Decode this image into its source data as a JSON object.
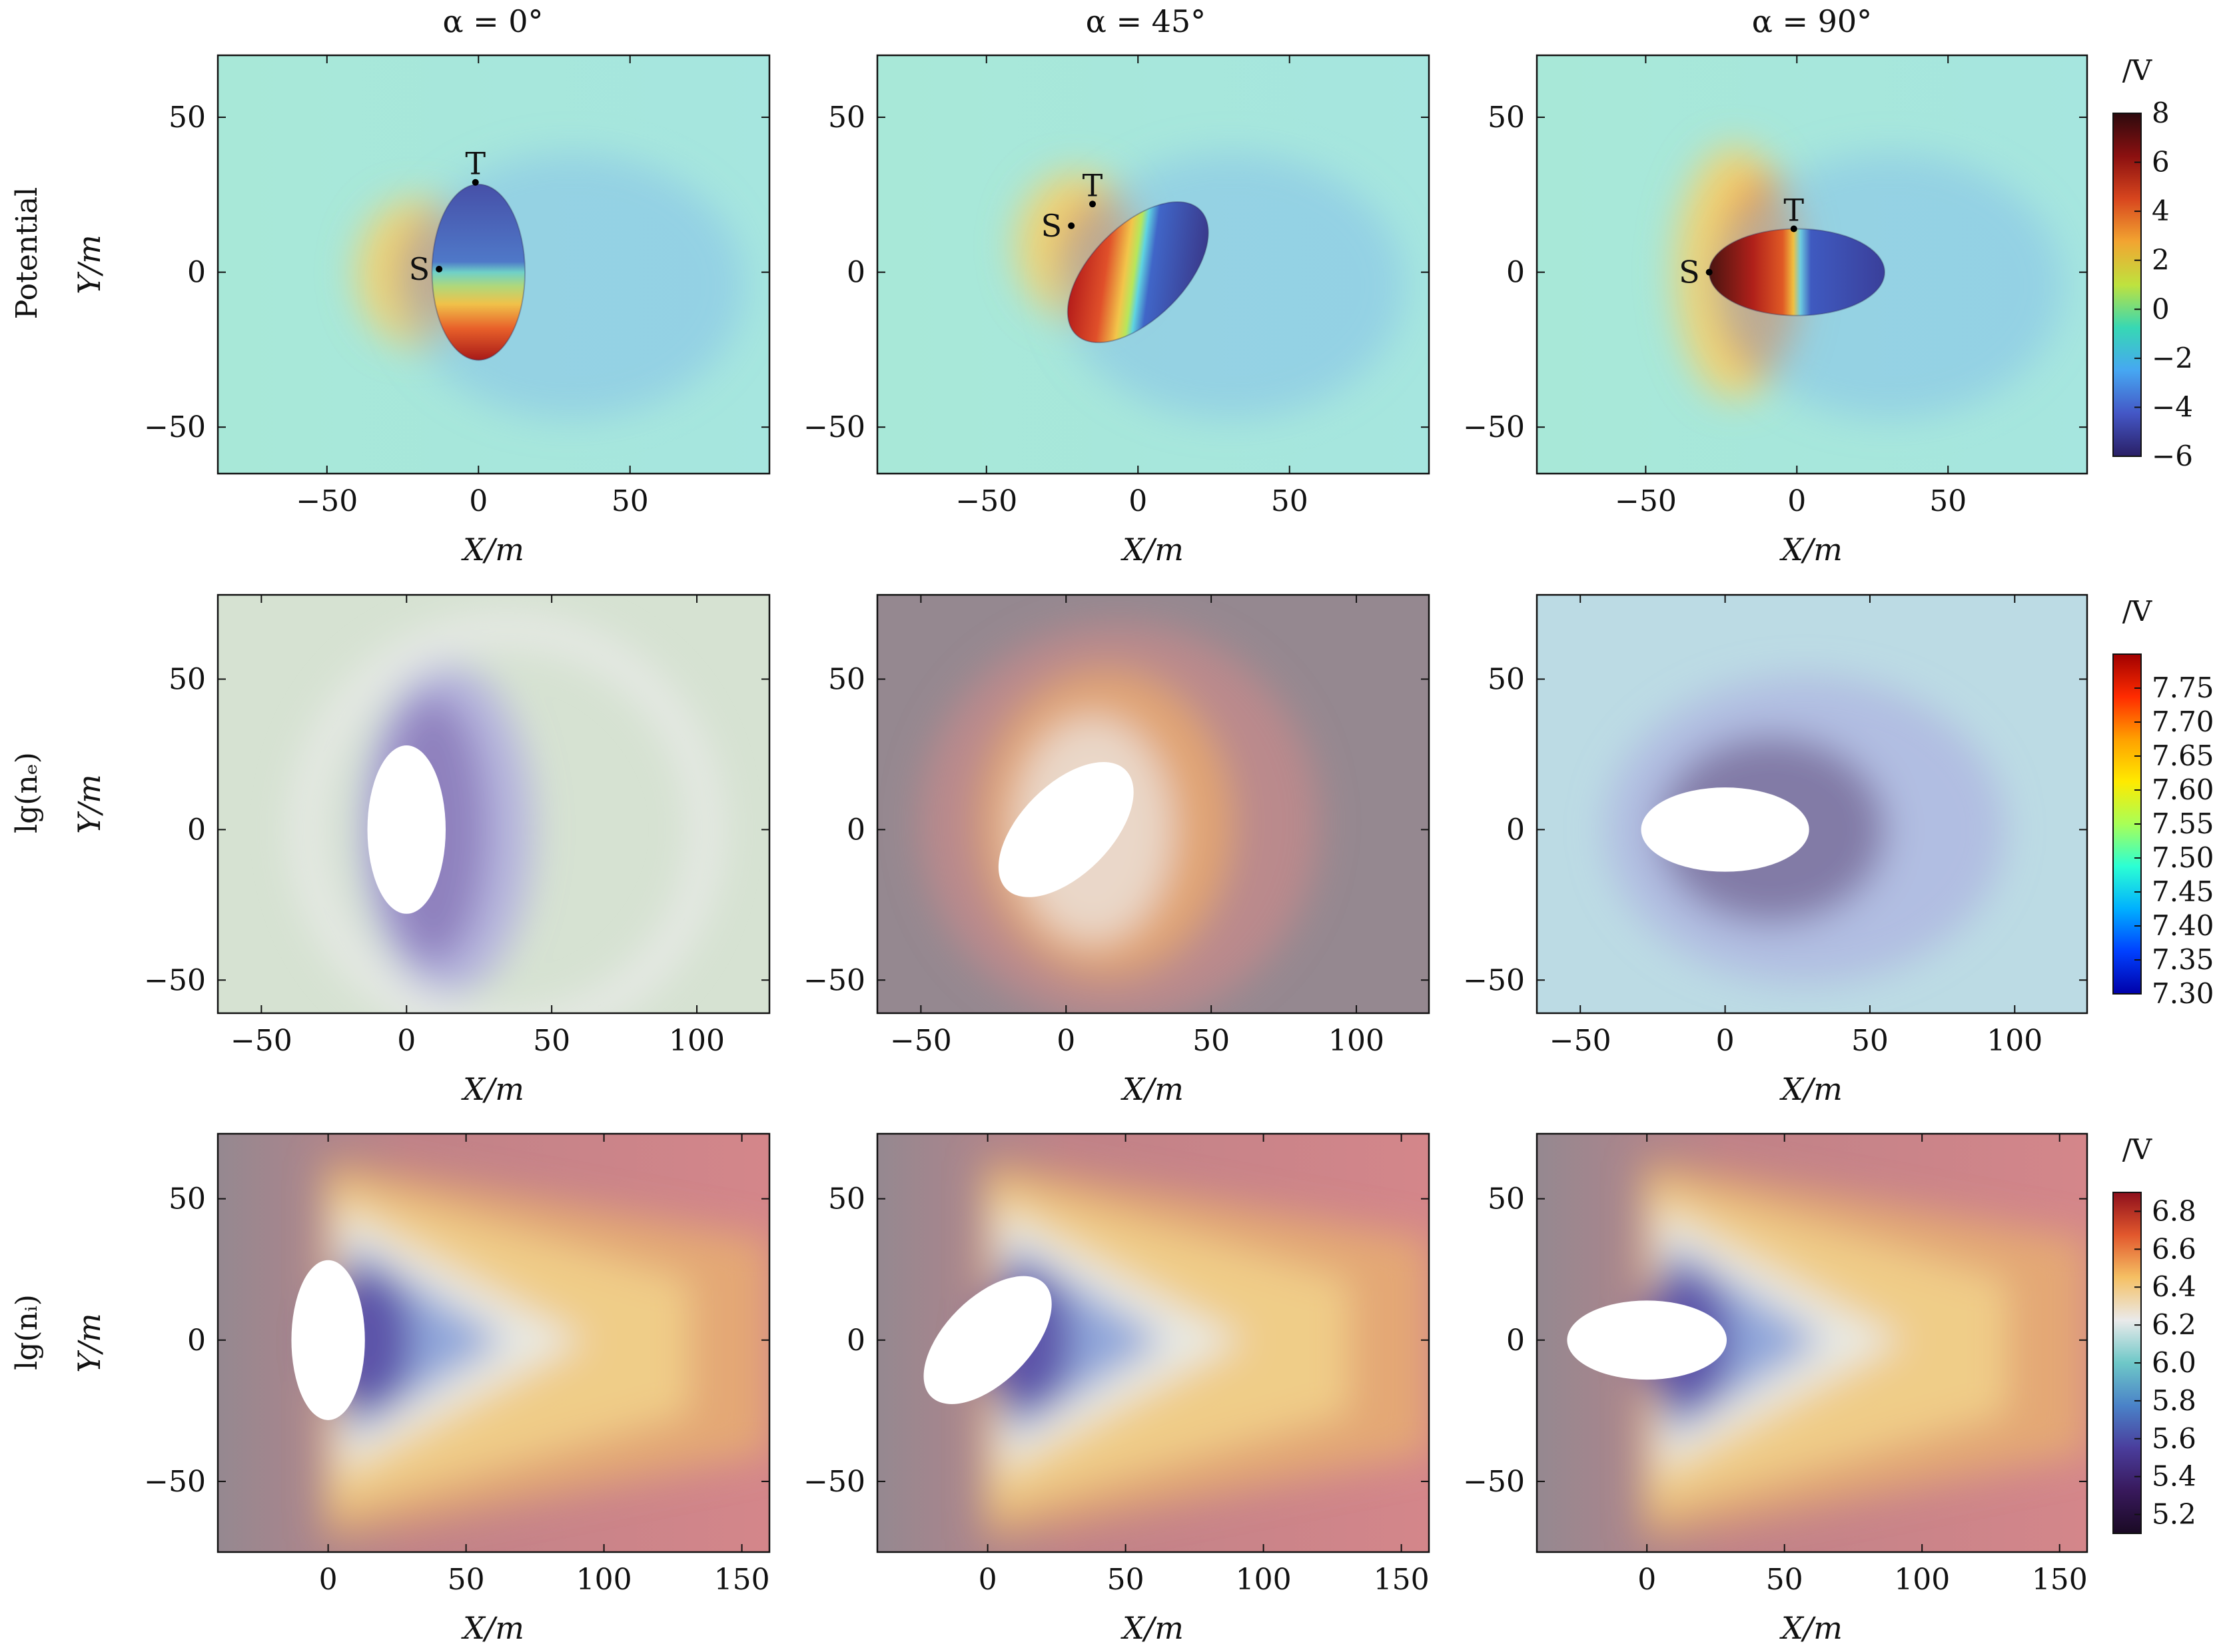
{
  "figure": {
    "column_titles": [
      "α = 0°",
      "α = 45°",
      "α = 90°"
    ],
    "row_titles": [
      "Potential",
      "lg(nₑ)",
      "lg(nᵢ)"
    ],
    "x_axis_label": "X/m",
    "y_axis_label": "Y/m"
  },
  "colors": {
    "potential_bg": "#a8e8d8",
    "potential_bg_right": "#a6e6df",
    "ne_bg_col1": "#d6e2d2",
    "ne_bg_col2": "#958890",
    "ne_bg_col3": "#bcdbe4",
    "ni_bg_left": "#958890",
    "ni_bg_right": "#d4868a",
    "body_fill": "#ffffff"
  },
  "chart_data": [
    {
      "type": "heatmap",
      "quantity": "Potential",
      "column_title": "α = 0°",
      "xlabel": "X/m",
      "ylabel": "Y/m",
      "xlim": [
        -86,
        96
      ],
      "ylim": [
        -65,
        70
      ],
      "xticks": [
        -50,
        0,
        50
      ],
      "yticks": [
        -50,
        0,
        50
      ],
      "body": {
        "center": [
          0,
          0
        ],
        "semi_major": 29,
        "semi_minor": 15,
        "tilt_deg": 90
      },
      "markers": [
        {
          "label": "S",
          "x": -13,
          "y": 1
        },
        {
          "label": "T",
          "x": -1,
          "y": 29
        }
      ]
    },
    {
      "type": "heatmap",
      "quantity": "Potential",
      "column_title": "α = 45°",
      "xlabel": "X/m",
      "ylabel": "Y/m",
      "xlim": [
        -86,
        96
      ],
      "ylim": [
        -65,
        70
      ],
      "xticks": [
        -50,
        0,
        50
      ],
      "yticks": [
        -50,
        0,
        50
      ],
      "body": {
        "center": [
          0,
          0
        ],
        "semi_major": 29,
        "semi_minor": 15,
        "tilt_deg": 45
      },
      "markers": [
        {
          "label": "S",
          "x": -22,
          "y": 15
        },
        {
          "label": "T",
          "x": -15,
          "y": 22
        }
      ]
    },
    {
      "type": "heatmap",
      "quantity": "Potential",
      "column_title": "α = 90°",
      "xlabel": "X/m",
      "ylabel": "Y/m",
      "xlim": [
        -86,
        96
      ],
      "ylim": [
        -65,
        70
      ],
      "xticks": [
        -50,
        0,
        50
      ],
      "yticks": [
        -50,
        0,
        50
      ],
      "body": {
        "center": [
          0,
          0
        ],
        "semi_major": 29,
        "semi_minor": 14,
        "tilt_deg": 0
      },
      "markers": [
        {
          "label": "S",
          "x": -29,
          "y": 0
        },
        {
          "label": "T",
          "x": -1,
          "y": 14
        }
      ]
    },
    {
      "type": "heatmap",
      "quantity": "lg(nₑ)",
      "xlabel": "X/m",
      "ylabel": "Y/m",
      "xlim": [
        -65,
        125
      ],
      "ylim": [
        -61,
        78
      ],
      "xticks": [
        -50,
        0,
        50,
        100
      ],
      "yticks": [
        -50,
        0,
        50
      ],
      "body": {
        "center": [
          0,
          0
        ],
        "semi_major": 29,
        "semi_minor": 13,
        "tilt_deg": 90
      }
    },
    {
      "type": "heatmap",
      "quantity": "lg(nₑ)",
      "xlabel": "X/m",
      "ylabel": "Y/m",
      "xlim": [
        -65,
        125
      ],
      "ylim": [
        -61,
        78
      ],
      "xticks": [
        -50,
        0,
        50,
        100
      ],
      "yticks": [
        -50,
        0,
        50
      ],
      "body": {
        "center": [
          0,
          0
        ],
        "semi_major": 29,
        "semi_minor": 15,
        "tilt_deg": 45
      }
    },
    {
      "type": "heatmap",
      "quantity": "lg(nₑ)",
      "xlabel": "X/m",
      "ylabel": "Y/m",
      "xlim": [
        -65,
        125
      ],
      "ylim": [
        -61,
        78
      ],
      "xticks": [
        -50,
        0,
        50,
        100
      ],
      "yticks": [
        -50,
        0,
        50
      ],
      "body": {
        "center": [
          0,
          0
        ],
        "semi_major": 29,
        "semi_minor": 14,
        "tilt_deg": 0
      }
    },
    {
      "type": "heatmap",
      "quantity": "lg(nᵢ)",
      "xlabel": "X/m",
      "ylabel": "Y/m",
      "xlim": [
        -40,
        160
      ],
      "ylim": [
        -75,
        73
      ],
      "xticks": [
        0,
        50,
        100,
        150
      ],
      "yticks": [
        -50,
        0,
        50
      ],
      "body": {
        "center": [
          0,
          0
        ],
        "semi_major": 29,
        "semi_minor": 13,
        "tilt_deg": 90
      }
    },
    {
      "type": "heatmap",
      "quantity": "lg(nᵢ)",
      "xlabel": "X/m",
      "ylabel": "Y/m",
      "xlim": [
        -40,
        160
      ],
      "ylim": [
        -75,
        73
      ],
      "xticks": [
        0,
        50,
        100,
        150
      ],
      "yticks": [
        -50,
        0,
        50
      ],
      "body": {
        "center": [
          0,
          0
        ],
        "semi_major": 29,
        "semi_minor": 15,
        "tilt_deg": 45
      }
    },
    {
      "type": "heatmap",
      "quantity": "lg(nᵢ)",
      "xlabel": "X/m",
      "ylabel": "Y/m",
      "xlim": [
        -40,
        160
      ],
      "ylim": [
        -75,
        73
      ],
      "xticks": [
        0,
        50,
        100,
        150
      ],
      "yticks": [
        -50,
        0,
        50
      ],
      "body": {
        "center": [
          0,
          0
        ],
        "semi_major": 29,
        "semi_minor": 14,
        "tilt_deg": 0
      }
    }
  ],
  "colorbars": [
    {
      "label": "/V",
      "range": [
        -6,
        8
      ],
      "ticks": [
        "8",
        "6",
        "4",
        "2",
        "0",
        "−2",
        "−4",
        "−6"
      ],
      "stops": [
        "#2d0a0e",
        "#8b1010",
        "#d8461e",
        "#f2a531",
        "#bfe23e",
        "#37d8b4",
        "#46a7f2",
        "#4457c6",
        "#2a1f66"
      ]
    },
    {
      "label": "/V",
      "range": [
        7.3,
        7.8
      ],
      "ticks": [
        "7.75",
        "7.70",
        "7.65",
        "7.60",
        "7.55",
        "7.50",
        "7.45",
        "7.40",
        "7.35",
        "7.30"
      ],
      "stops": [
        "#a00000",
        "#ff2b00",
        "#ffa000",
        "#ffea00",
        "#a8ff57",
        "#2bffd4",
        "#00b0ff",
        "#0040ff",
        "#0000a8"
      ]
    },
    {
      "label": "/V",
      "range": [
        5.1,
        6.9
      ],
      "ticks": [
        "6.8",
        "6.6",
        "6.4",
        "6.2",
        "6.0",
        "5.8",
        "5.6",
        "5.4",
        "5.2"
      ],
      "stops": [
        "#8e0f1c",
        "#e2582d",
        "#f5c064",
        "#eaeaea",
        "#6ec8c8",
        "#4a82c8",
        "#4a3d9c",
        "#38195c",
        "#1a0a24"
      ]
    }
  ]
}
